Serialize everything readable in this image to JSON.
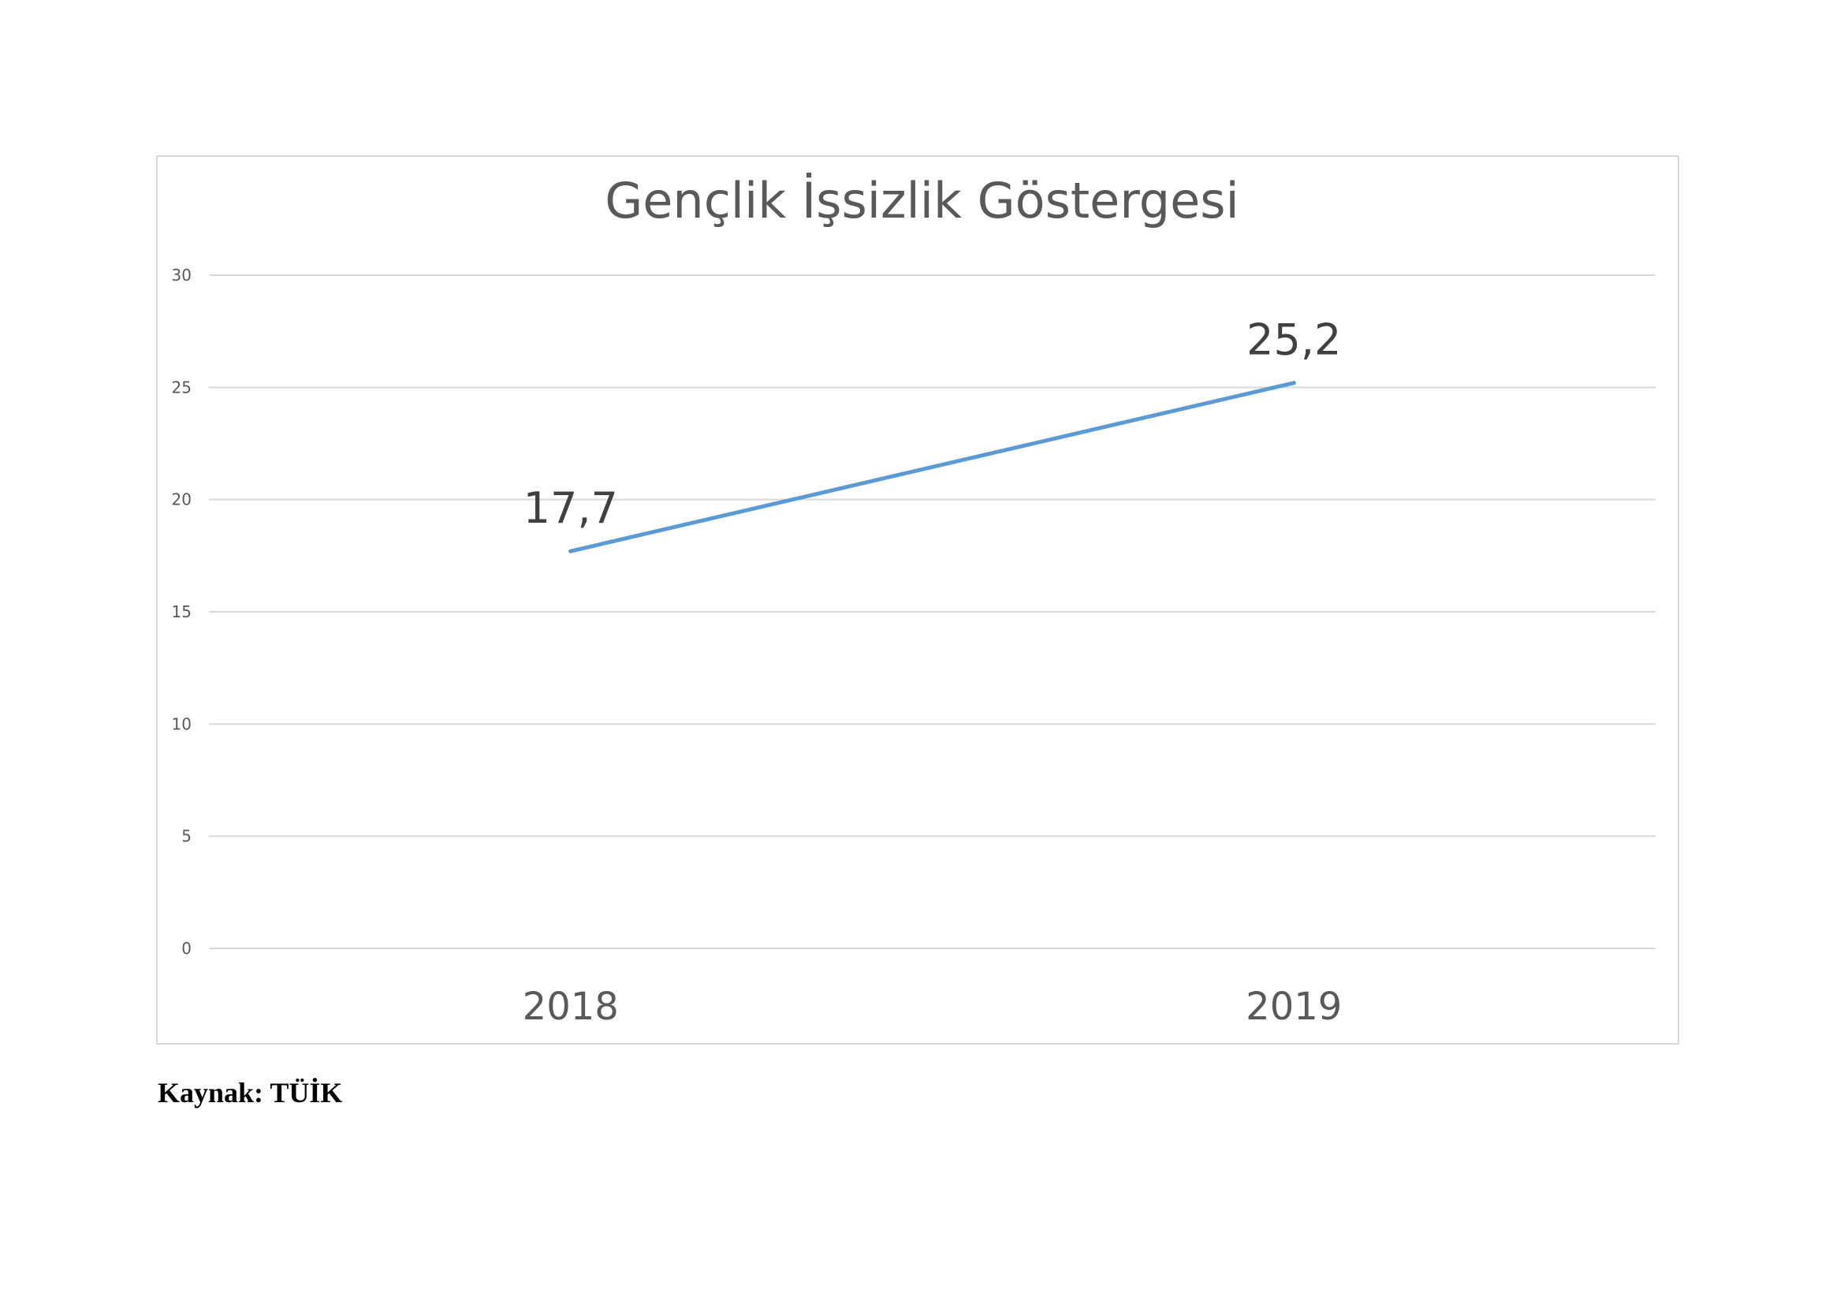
{
  "chart_data": {
    "type": "line",
    "title": "Gençlik İşsizlik Göstergesi",
    "xlabel": "",
    "ylabel": "",
    "categories": [
      "2018",
      "2019"
    ],
    "series": [
      {
        "values": [
          17.7,
          25.2
        ],
        "labels": [
          "17,7",
          "25,2"
        ],
        "color": "#5b9bd5"
      }
    ],
    "ylim": [
      0,
      30
    ],
    "yticks": [
      0,
      5,
      10,
      15,
      20,
      25,
      30
    ],
    "grid": true,
    "legend": "none"
  },
  "source": "Kaynak: TÜİK"
}
